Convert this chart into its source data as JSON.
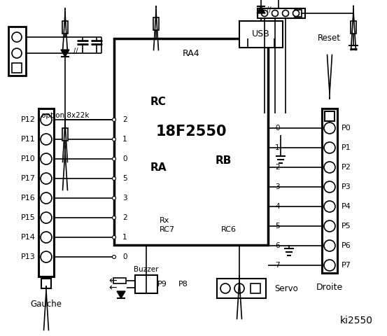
{
  "bg": "#ffffff",
  "lc": "#000000",
  "title": "ki2550",
  "chip_label": "18F2550",
  "ra4_label": "RA4",
  "rc_label": "RC",
  "ra_label": "RA",
  "rb_label": "RB",
  "rx_label": "Rx",
  "rc7_label": "RC7",
  "rc6_label": "RC6",
  "usb_label": "USB",
  "option_label": "option 8x22k",
  "reset_label": "Reset",
  "droite_label": "Droite",
  "gauche_label": "Gauche",
  "buzzer_label": "Buzzer",
  "servo_label": "Servo",
  "p9_label": "P9",
  "p8_label": "P8",
  "left_labels": [
    "P12",
    "P11",
    "P10",
    "P17",
    "P16",
    "P15",
    "P14",
    "P13"
  ],
  "right_labels": [
    "P0",
    "P1",
    "P2",
    "P3",
    "P4",
    "P5",
    "P6",
    "P7"
  ],
  "rc_nums": [
    "2",
    "1",
    "0",
    "5",
    "3",
    "2",
    "1",
    "0"
  ],
  "rb_nums": [
    "0",
    "1",
    "2",
    "3",
    "4",
    "5",
    "6",
    "7"
  ]
}
